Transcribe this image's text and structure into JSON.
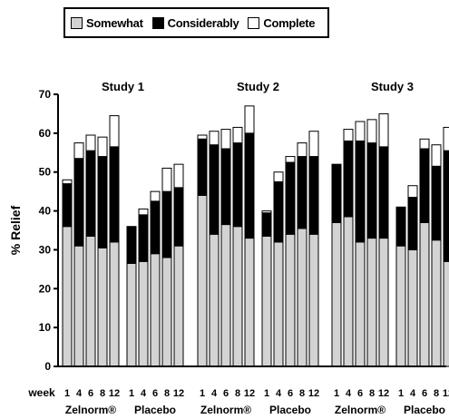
{
  "legend": [
    {
      "label": "Somewhat",
      "color": "#d3d3d3"
    },
    {
      "label": "Considerably",
      "color": "#000000"
    },
    {
      "label": "Complete",
      "color": "#ffffff"
    }
  ],
  "chart_data": {
    "type": "bar",
    "stacked": true,
    "ylabel": "% Relief",
    "ylim": [
      0,
      70
    ],
    "yticks": [
      0,
      10,
      20,
      30,
      40,
      50,
      60,
      70
    ],
    "xaxis_prefix": "week",
    "weeks": [
      "1",
      "4",
      "6",
      "8",
      "12"
    ],
    "series": [
      {
        "name": "Somewhat",
        "color": "#d3d3d3"
      },
      {
        "name": "Considerably",
        "color": "#000000"
      },
      {
        "name": "Complete",
        "color": "#ffffff"
      }
    ],
    "studies": [
      {
        "title": "Study 1",
        "groups": [
          {
            "label": "Zelnorm®",
            "bars": [
              [
                36,
                47,
                48
              ],
              [
                31,
                53.5,
                57.5
              ],
              [
                33.5,
                55.5,
                59.5
              ],
              [
                30.5,
                54,
                59
              ],
              [
                32,
                56.5,
                64.5
              ]
            ]
          },
          {
            "label": "Placebo",
            "bars": [
              [
                26.5,
                36,
                36
              ],
              [
                27,
                39,
                40.5
              ],
              [
                29,
                42.5,
                45
              ],
              [
                28,
                45,
                51
              ],
              [
                31,
                46,
                52
              ]
            ]
          }
        ]
      },
      {
        "title": "Study 2",
        "groups": [
          {
            "label": "Zelnorm®",
            "bars": [
              [
                44,
                58.5,
                59.5
              ],
              [
                34,
                57,
                60.5
              ],
              [
                36.5,
                56,
                61
              ],
              [
                36,
                57.5,
                61.5
              ],
              [
                33,
                60,
                67
              ]
            ]
          },
          {
            "label": "Placebo",
            "bars": [
              [
                33.5,
                39.5,
                40
              ],
              [
                32,
                47.5,
                50
              ],
              [
                34,
                52.5,
                54
              ],
              [
                35.5,
                54,
                57.5
              ],
              [
                34,
                54,
                60.5
              ]
            ]
          }
        ]
      },
      {
        "title": "Study 3",
        "groups": [
          {
            "label": "Zelnorm®",
            "bars": [
              [
                37,
                52,
                52
              ],
              [
                38.5,
                58,
                61
              ],
              [
                32,
                58,
                63
              ],
              [
                33,
                57.5,
                63.5
              ],
              [
                33,
                56.5,
                65
              ]
            ]
          },
          {
            "label": "Placebo",
            "bars": [
              [
                31,
                41,
                41
              ],
              [
                30,
                43.5,
                46.5
              ],
              [
                37,
                56,
                58.5
              ],
              [
                32.5,
                51.5,
                57
              ],
              [
                27,
                55.5,
                61.5
              ]
            ]
          }
        ]
      }
    ]
  }
}
